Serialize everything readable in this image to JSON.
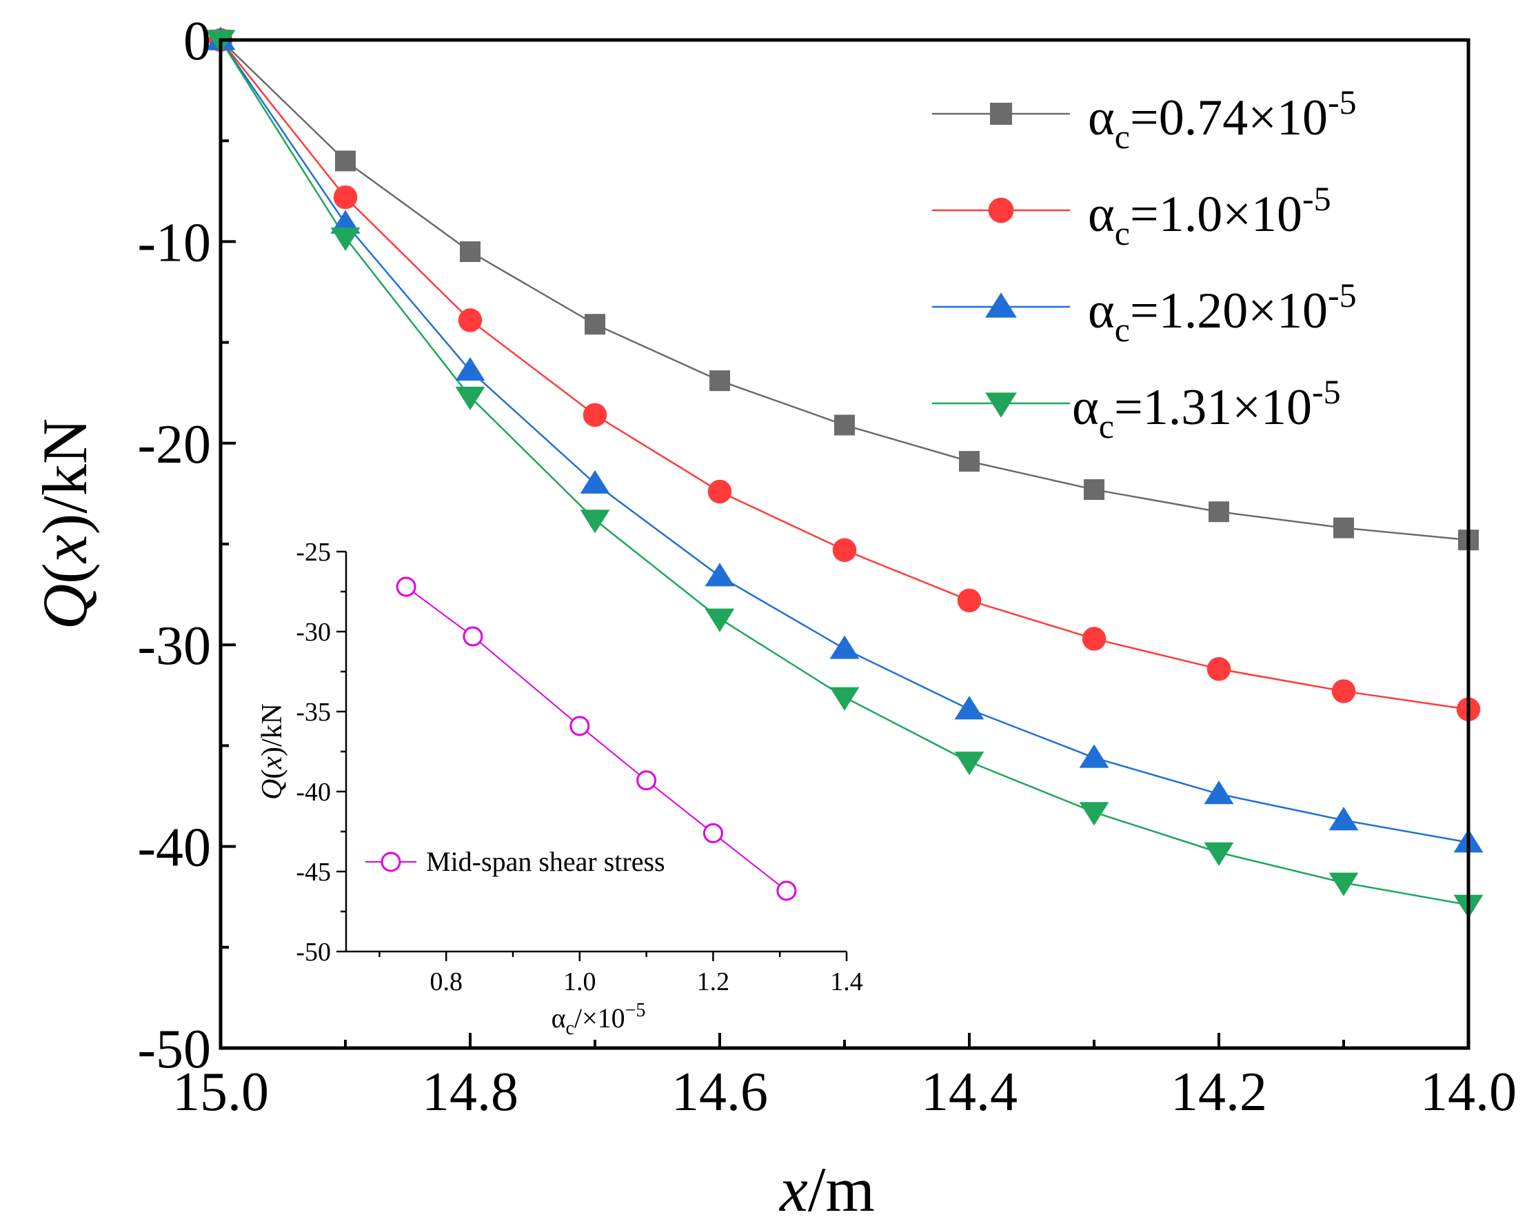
{
  "chart_data": [
    {
      "type": "line",
      "name": "main",
      "xlabel_italic": "x",
      "xlabel_rest": "/m",
      "ylabel_italic_Q": "Q",
      "ylabel_italic_x": "x",
      "ylabel_rest": "/kN",
      "xlim": [
        15.0,
        14.0
      ],
      "ylim": [
        -50,
        0
      ],
      "xticks": [
        15.0,
        14.8,
        14.6,
        14.4,
        14.2,
        14.0
      ],
      "xtick_labels": [
        "15.0",
        "14.8",
        "14.6",
        "14.4",
        "14.2",
        "14.0"
      ],
      "yticks": [
        0,
        -10,
        -20,
        -30,
        -40,
        -50
      ],
      "ytick_labels": [
        "0",
        "-10",
        "-20",
        "-30",
        "-40",
        "-50"
      ],
      "x": [
        15.0,
        14.9,
        14.8,
        14.7,
        14.6,
        14.5,
        14.4,
        14.3,
        14.2,
        14.1,
        14.0
      ],
      "series": [
        {
          "name": "αc=0.74×10-5",
          "alpha_label": "α",
          "sub": "c",
          "value_label": "=0.74×10",
          "sup": "-5",
          "color": "#6b6b6b",
          "marker": "square",
          "values": [
            0,
            -6.0,
            -10.5,
            -14.1,
            -16.9,
            -19.1,
            -20.9,
            -22.3,
            -23.4,
            -24.2,
            -24.8
          ]
        },
        {
          "name": "αc=1.0×10-5",
          "alpha_label": "α",
          "sub": "c",
          "value_label": "=1.0×10",
          "sup": "-5",
          "color": "#ff3b3b",
          "marker": "circle",
          "values": [
            0,
            -7.8,
            -13.9,
            -18.6,
            -22.4,
            -25.3,
            -27.8,
            -29.7,
            -31.2,
            -32.3,
            -33.2
          ]
        },
        {
          "name": "αc=1.20×10-5",
          "alpha_label": "α",
          "sub": "c",
          "value_label": "=1.20×10",
          "sup": "-5",
          "color": "#1f6fd6",
          "marker": "triangle-up",
          "values": [
            0,
            -9.1,
            -16.4,
            -22.0,
            -26.6,
            -30.2,
            -33.2,
            -35.6,
            -37.4,
            -38.7,
            -39.8
          ]
        },
        {
          "name": "αc=1.31×10-5",
          "alpha_label": "α",
          "sub": "c",
          "value_label": "=1.31×10",
          "sup": "-5",
          "color": "#1fa65a",
          "marker": "triangle-down",
          "values": [
            0,
            -9.8,
            -17.7,
            -23.8,
            -28.7,
            -32.6,
            -35.8,
            -38.3,
            -40.3,
            -41.8,
            -42.9
          ]
        }
      ]
    },
    {
      "type": "line",
      "name": "inset",
      "xlabel_alpha": "α",
      "xlabel_sub": "c",
      "xlabel_rest": "/×10",
      "xlabel_sup": "−5",
      "ylabel_italic_Q": "Q",
      "ylabel_italic_x": "x",
      "ylabel_rest": "/kN",
      "xlim": [
        0.65,
        1.4
      ],
      "ylim": [
        -50,
        -25
      ],
      "xticks": [
        0.8,
        1.0,
        1.2,
        1.4
      ],
      "xtick_labels": [
        "0.8",
        "1.0",
        "1.2",
        "1.4"
      ],
      "yticks": [
        -25,
        -30,
        -35,
        -40,
        -45,
        -50
      ],
      "ytick_labels": [
        "-25",
        "-30",
        "-35",
        "-40",
        "-45",
        "-50"
      ],
      "series": [
        {
          "name": "Mid-span shear stress",
          "color": "#e000e0",
          "marker": "open-circle",
          "x": [
            0.74,
            0.84,
            1.0,
            1.1,
            1.2,
            1.31
          ],
          "values": [
            -27.2,
            -30.3,
            -35.9,
            -39.3,
            -42.6,
            -46.2
          ]
        }
      ]
    }
  ]
}
